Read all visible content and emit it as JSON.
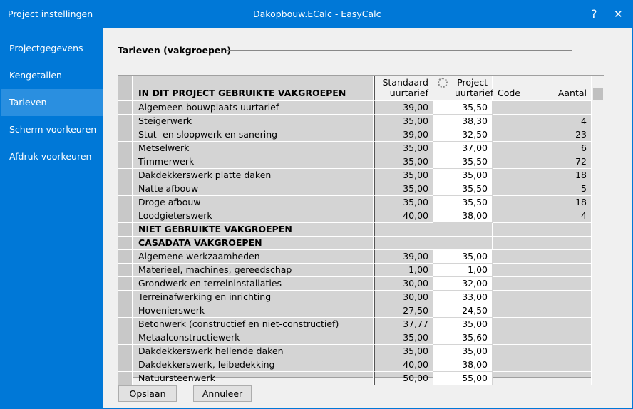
{
  "window": {
    "app_title": "Project instellingen",
    "title": "Dakopbouw.ECalc  -  EasyCalc",
    "help": "?",
    "close": "✕"
  },
  "sidebar": {
    "items": [
      "Projectgegevens",
      "Kengetallen",
      "Tarieven",
      "Scherm voorkeuren",
      "Afdruk voorkeuren"
    ],
    "selected": 2
  },
  "section": {
    "title": "Tarieven (vakgroepen)"
  },
  "table": {
    "header": {
      "title": "IN DIT PROJECT GEBRUIKTE VAKGROEPEN",
      "standard": "Standaard uurtarief",
      "project": "Project uurtarief",
      "code": "Code",
      "count": "Aantal"
    },
    "rows": [
      {
        "name": "Algemeen bouwplaats uurtarief",
        "standard": "39,00",
        "project": "35,50"
      },
      {
        "name": "Steigerwerk",
        "standard": "35,00",
        "project": "38,30",
        "count": "4"
      },
      {
        "name": "Stut- en sloopwerk en sanering",
        "standard": "39,00",
        "project": "32,50",
        "count": "23"
      },
      {
        "name": "Metselwerk",
        "standard": "35,00",
        "project": "37,00",
        "count": "6"
      },
      {
        "name": "Timmerwerk",
        "standard": "35,00",
        "project": "35,50",
        "count": "72"
      },
      {
        "name": "Dakdekkerswerk platte daken",
        "standard": "35,00",
        "project": "35,00",
        "count": "18"
      },
      {
        "name": "Natte afbouw",
        "standard": "35,00",
        "project": "35,50",
        "count": "5"
      },
      {
        "name": "Droge afbouw",
        "standard": "35,00",
        "project": "35,50",
        "count": "18"
      },
      {
        "name": "Loodgieterswerk",
        "standard": "40,00",
        "project": "38,00",
        "count": "4"
      },
      {
        "heading": "NIET GEBRUIKTE VAKGROEPEN"
      },
      {
        "heading": "CASADATA VAKGROEPEN"
      },
      {
        "name": "Algemene werkzaamheden",
        "standard": "39,00",
        "project": "35,00"
      },
      {
        "name": "Materieel, machines, gereedschap",
        "standard": "1,00",
        "project": "1,00"
      },
      {
        "name": "Grondwerk en terreininstallaties",
        "standard": "30,00",
        "project": "32,00"
      },
      {
        "name": "Terreinafwerking en inrichting",
        "standard": "30,00",
        "project": "33,00"
      },
      {
        "name": "Hovenierswerk",
        "standard": "27,50",
        "project": "24,50"
      },
      {
        "name": "Betonwerk (constructief en niet-constructief)",
        "standard": "37,77",
        "project": "35,00"
      },
      {
        "name": "Metaalconstructiewerk",
        "standard": "35,00",
        "project": "35,60"
      },
      {
        "name": "Dakdekkerswerk hellende daken",
        "standard": "35,00",
        "project": "35,00"
      },
      {
        "name": "Dakdekkerswerk, leibedekking",
        "standard": "40,00",
        "project": "38,00"
      },
      {
        "name": "Natuursteenwerk",
        "standard": "50,00",
        "project": "55,00"
      }
    ]
  },
  "buttons": [
    "Opslaan",
    "Annuleer"
  ]
}
